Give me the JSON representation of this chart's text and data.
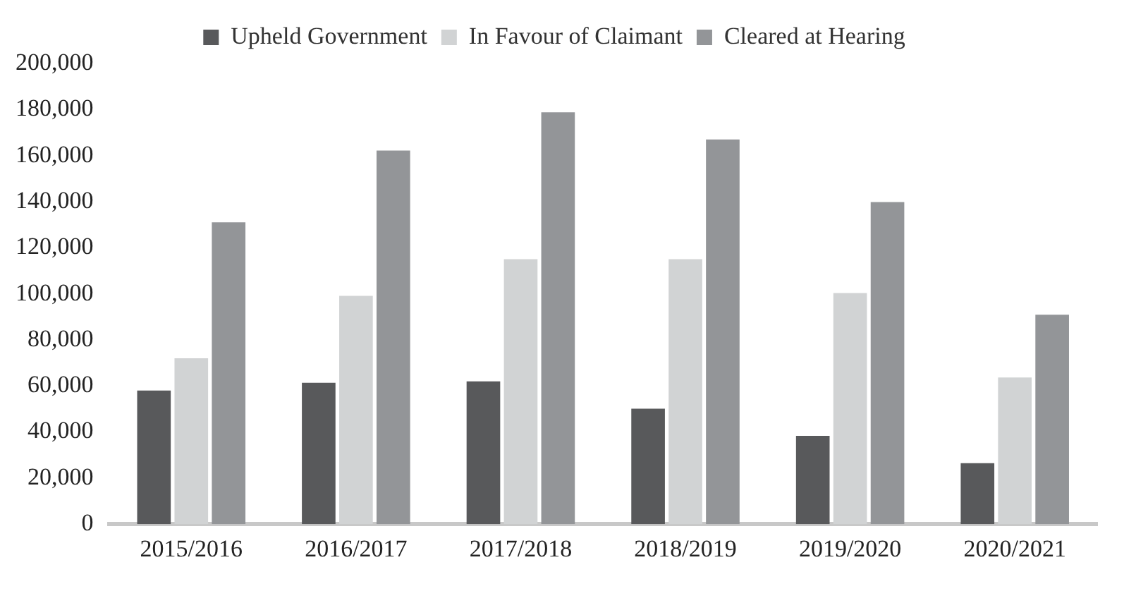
{
  "chart_data": {
    "type": "bar",
    "categories": [
      "2015/2016",
      "2016/2017",
      "2017/2018",
      "2018/2019",
      "2019/2020",
      "2020/2021"
    ],
    "series": [
      {
        "name": "Upheld Government",
        "color": "#58595b",
        "values": [
          58000,
          61400,
          62000,
          50100,
          38300,
          26500
        ]
      },
      {
        "name": "In Favour of Claimant",
        "color": "#d1d3d4",
        "values": [
          72000,
          99100,
          115000,
          115000,
          100300,
          63700
        ]
      },
      {
        "name": "Cleared at Hearing",
        "color": "#939598",
        "values": [
          131000,
          162200,
          178800,
          167000,
          139800,
          90900
        ]
      }
    ],
    "ylim": [
      0,
      200000
    ],
    "yticks": [
      {
        "value": 0,
        "label": "0"
      },
      {
        "value": 20000,
        "label": "20,000"
      },
      {
        "value": 40000,
        "label": "40,000"
      },
      {
        "value": 60000,
        "label": "60,000"
      },
      {
        "value": 80000,
        "label": "80,000"
      },
      {
        "value": 100000,
        "label": "100,000"
      },
      {
        "value": 120000,
        "label": "120,000"
      },
      {
        "value": 140000,
        "label": "140,000"
      },
      {
        "value": 160000,
        "label": "160,000"
      },
      {
        "value": 180000,
        "label": "180,000"
      },
      {
        "value": 200000,
        "label": "200,000"
      }
    ],
    "grid": false,
    "legend": "top"
  }
}
